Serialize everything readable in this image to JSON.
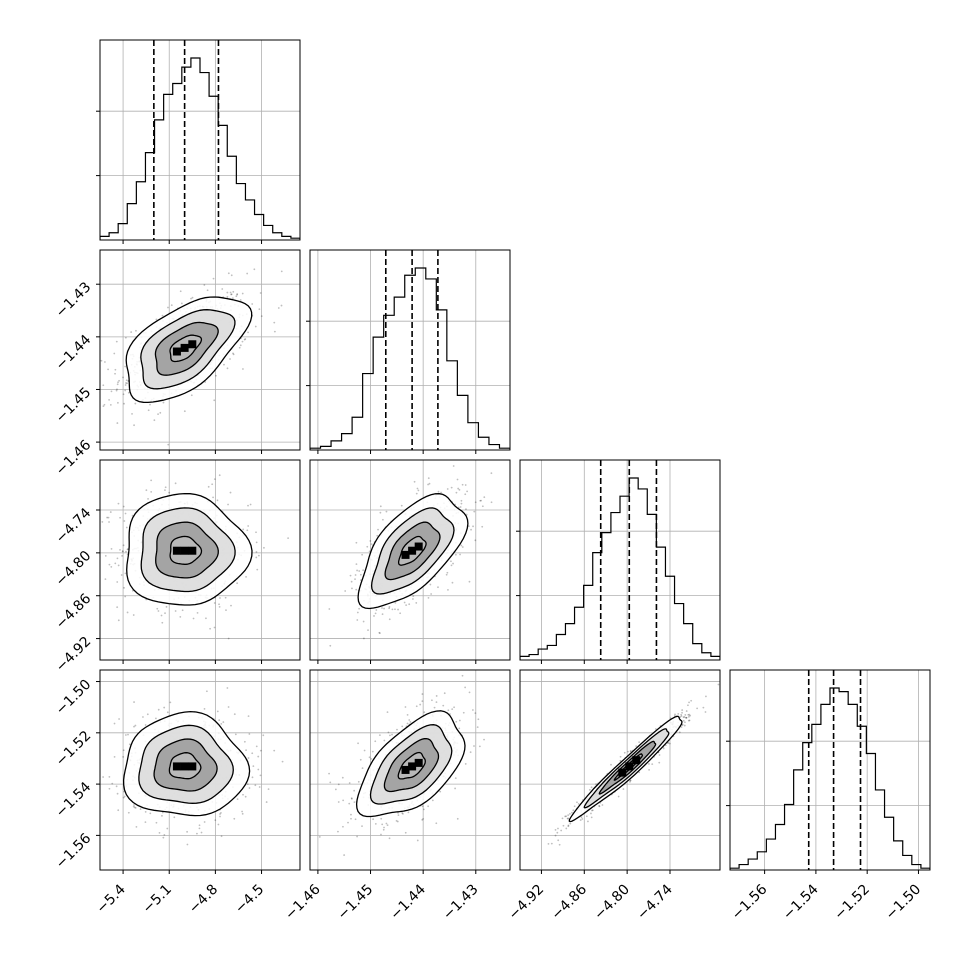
{
  "chart_data": {
    "type": "corner",
    "grid": true,
    "colors": {
      "axes": "#000000",
      "grid": "#b0b0b0",
      "line": "#000000",
      "scatter": "#000000"
    },
    "parameters": [
      {
        "range": [
          -5.55,
          -4.25
        ],
        "ticks": [
          -5.4,
          -5.1,
          -4.8,
          -4.5
        ],
        "tick_labels": [
          "−5.4",
          "−5.1",
          "−4.8",
          "−4.5"
        ],
        "quantiles": [
          -5.2,
          -5.0,
          -4.78
        ],
        "median": -5.0,
        "sigma": 0.2,
        "hist_counts": [
          2,
          4,
          9,
          20,
          32,
          48,
          66,
          80,
          86,
          95,
          100,
          92,
          79,
          63,
          46,
          31,
          22,
          14,
          8,
          4,
          2,
          1
        ]
      },
      {
        "range": [
          -1.4615,
          -1.4235
        ],
        "ticks": [
          -1.46,
          -1.45,
          -1.44,
          -1.43
        ],
        "tick_labels": [
          "−1.46",
          "−1.45",
          "−1.44",
          "−1.43"
        ],
        "quantiles": [
          -1.4471,
          -1.4421,
          -1.4372
        ],
        "median": -1.4421,
        "sigma": 0.005,
        "hist_counts": [
          1,
          2,
          5,
          9,
          18,
          42,
          62,
          74,
          84,
          96,
          100,
          94,
          77,
          49,
          30,
          15,
          7,
          3,
          1
        ]
      },
      {
        "range": [
          -4.95,
          -4.67
        ],
        "ticks": [
          -4.92,
          -4.86,
          -4.8,
          -4.74
        ],
        "tick_labels": [
          "−4.92",
          "−4.86",
          "−4.80",
          "−4.74"
        ],
        "quantiles": [
          -4.837,
          -4.797,
          -4.759
        ],
        "median": -4.797,
        "sigma": 0.039,
        "hist_counts": [
          2,
          3,
          6,
          8,
          14,
          20,
          29,
          41,
          59,
          70,
          81,
          90,
          100,
          94,
          80,
          62,
          46,
          31,
          20,
          9,
          4,
          2
        ]
      },
      {
        "range": [
          -1.5735,
          -1.4955
        ],
        "ticks": [
          -1.56,
          -1.54,
          -1.52,
          -1.5
        ],
        "tick_labels": [
          "−1.56",
          "−1.54",
          "−1.52",
          "−1.50"
        ],
        "quantiles": [
          -1.5428,
          -1.5331,
          -1.5226
        ],
        "median": -1.5331,
        "sigma": 0.01,
        "hist_counts": [
          1,
          3,
          6,
          10,
          17,
          25,
          36,
          55,
          70,
          80,
          91,
          100,
          98,
          91,
          79,
          64,
          44,
          29,
          16,
          8,
          3,
          1
        ]
      }
    ],
    "correlations": {
      "1-0": 0.55,
      "2-0": 0.0,
      "2-1": 0.6,
      "3-0": 0.0,
      "3-1": 0.55,
      "3-2": 0.97
    }
  }
}
